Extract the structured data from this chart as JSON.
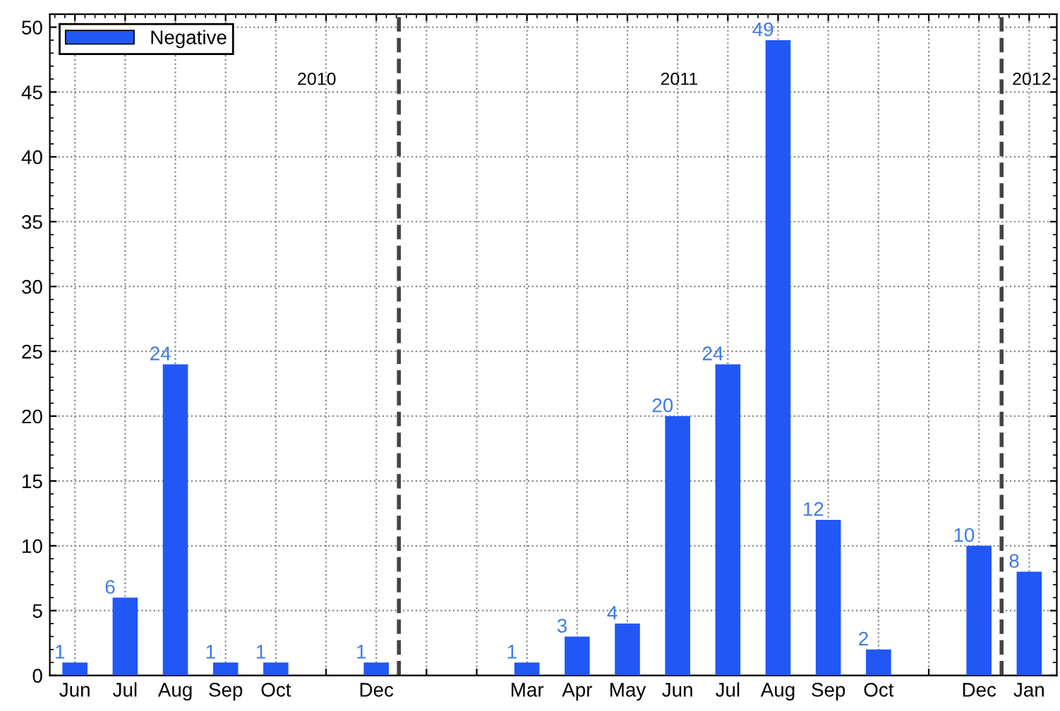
{
  "chart_data": {
    "type": "bar",
    "categories": [
      "Jun",
      "Jul",
      "Aug",
      "Sep",
      "Oct",
      null,
      "Dec",
      null,
      null,
      "Mar",
      "Apr",
      "May",
      "Jun",
      "Jul",
      "Aug",
      "Sep",
      "Oct",
      null,
      "Dec",
      "Jan"
    ],
    "series": [
      {
        "name": "Negative",
        "color": "#2158f5",
        "values": [
          1,
          6,
          24,
          1,
          1,
          null,
          1,
          null,
          null,
          1,
          3,
          4,
          20,
          24,
          49,
          12,
          2,
          null,
          10,
          8
        ]
      }
    ],
    "data_labels": true,
    "ylim": [
      0,
      51
    ],
    "yticks": [
      0,
      5,
      10,
      15,
      20,
      25,
      30,
      35,
      40,
      45,
      50
    ],
    "grid": true,
    "legend": "top left",
    "annotations": [
      "2010",
      "2011",
      "2012"
    ]
  }
}
